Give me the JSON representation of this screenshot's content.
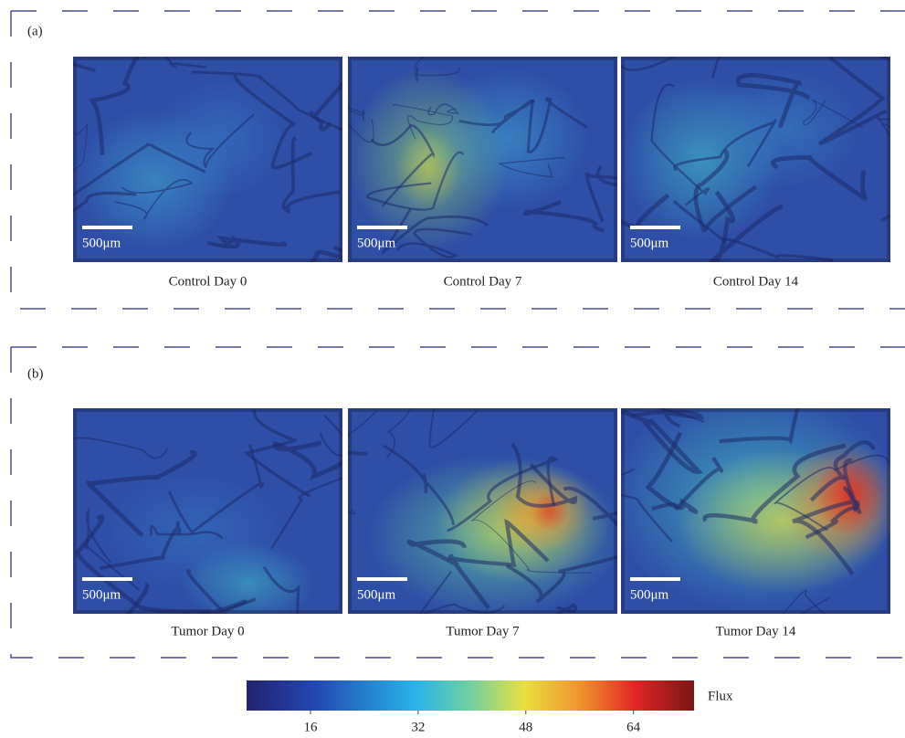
{
  "panels": [
    {
      "label": "(a)",
      "images": [
        {
          "caption": "Control Day 0",
          "scale_bar": "500μm"
        },
        {
          "caption": "Control Day 7",
          "scale_bar": "500μm"
        },
        {
          "caption": "Control Day 14",
          "scale_bar": "500μm"
        }
      ]
    },
    {
      "label": "(b)",
      "images": [
        {
          "caption": "Tumor Day 0",
          "scale_bar": "500μm"
        },
        {
          "caption": "Tumor Day 7",
          "scale_bar": "500μm"
        },
        {
          "caption": "Tumor Day 14",
          "scale_bar": "500μm"
        }
      ]
    }
  ],
  "colorbar": {
    "label": "Flux",
    "ticks": [
      16,
      32,
      48,
      64
    ],
    "lim": [
      6.5,
      73
    ]
  }
}
